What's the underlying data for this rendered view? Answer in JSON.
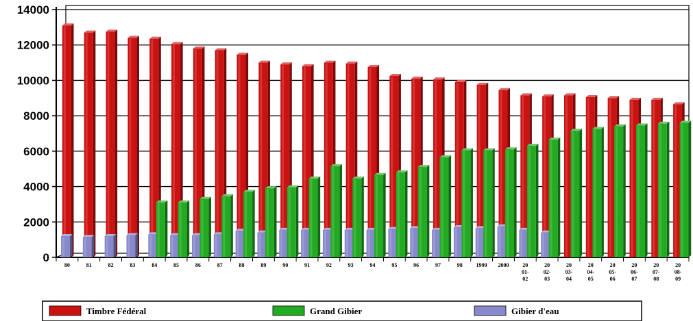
{
  "chart_data": {
    "type": "bar",
    "categories": [
      [
        "80"
      ],
      [
        "81"
      ],
      [
        "82"
      ],
      [
        "83"
      ],
      [
        "84"
      ],
      [
        "85"
      ],
      [
        "86"
      ],
      [
        "87"
      ],
      [
        "88"
      ],
      [
        "89"
      ],
      [
        "90"
      ],
      [
        "91"
      ],
      [
        "92"
      ],
      [
        "93"
      ],
      [
        "94"
      ],
      [
        "95"
      ],
      [
        "96"
      ],
      [
        "97"
      ],
      [
        "98"
      ],
      [
        "1999"
      ],
      [
        "2000"
      ],
      [
        "20",
        "01-",
        "02"
      ],
      [
        "20",
        "02-",
        "03"
      ],
      [
        "20",
        "03-",
        "04"
      ],
      [
        "20",
        "04-",
        "05"
      ],
      [
        "20",
        "05-",
        "06"
      ],
      [
        "20",
        "06-",
        "07"
      ],
      [
        "20",
        "07-",
        "08"
      ],
      [
        "20",
        "08-",
        "09"
      ]
    ],
    "series": [
      {
        "name": "Timbre Fédéral",
        "color": "#cc1111",
        "values": [
          13100,
          12700,
          12750,
          12400,
          12350,
          12050,
          11800,
          11700,
          11450,
          11000,
          10900,
          10800,
          11000,
          10950,
          10750,
          10250,
          10100,
          10050,
          9900,
          9750,
          9450,
          9150,
          9100,
          9150,
          9050,
          9000,
          8900,
          8900,
          8650
        ]
      },
      {
        "name": "Grand Gibier",
        "color": "#22aa22",
        "values": [
          null,
          null,
          null,
          null,
          3100,
          3100,
          3300,
          3450,
          3700,
          3900,
          3950,
          4450,
          5150,
          4450,
          4650,
          4800,
          5100,
          5650,
          6050,
          6050,
          6100,
          6300,
          6650,
          7150,
          7250,
          7400,
          7450,
          7550,
          7600
        ]
      },
      {
        "name": "Gibier d'eau",
        "color": "#8888cc",
        "values": [
          1200,
          1150,
          1200,
          1250,
          1300,
          1250,
          1250,
          1300,
          1500,
          1400,
          1550,
          1550,
          1550,
          1550,
          1550,
          1600,
          1650,
          1550,
          1700,
          1650,
          1750,
          1550,
          1400,
          null,
          null,
          null,
          null,
          null,
          null
        ]
      }
    ],
    "yticks": [
      "0",
      "2000",
      "4000",
      "6000",
      "8000",
      "10000",
      "12000",
      "14000"
    ],
    "ylim": [
      0,
      14000
    ],
    "grid": true,
    "legend_position": "bottom"
  }
}
